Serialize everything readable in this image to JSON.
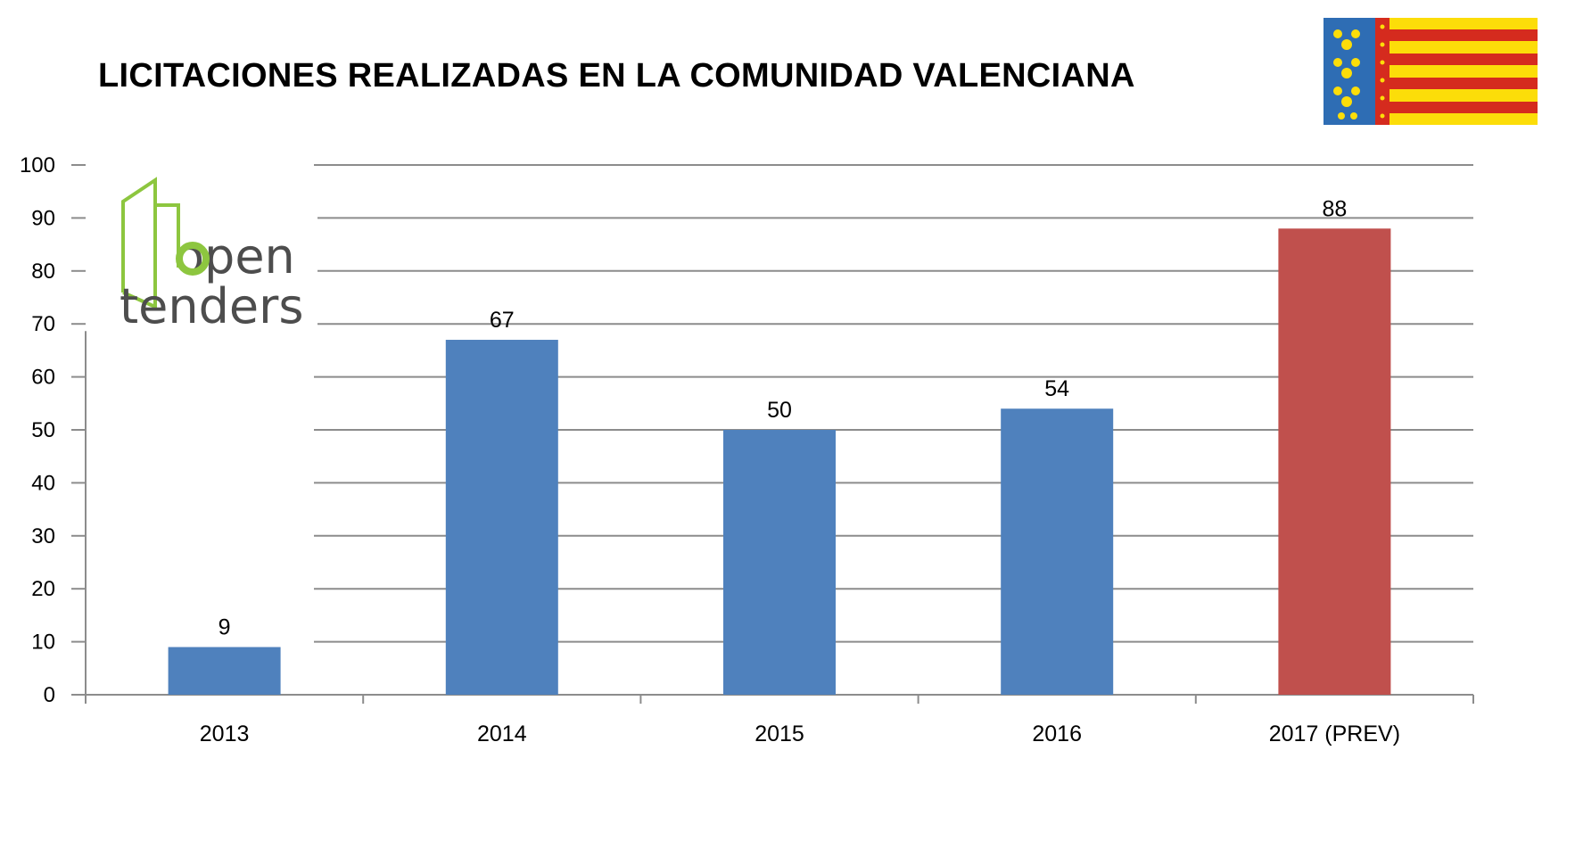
{
  "chart_data": {
    "type": "bar",
    "title": "LICITACIONES REALIZADAS EN LA COMUNIDAD VALENCIANA",
    "xlabel": "",
    "ylabel": "",
    "categories": [
      "2013",
      "2014",
      "2015",
      "2016",
      "2017 (PREV)"
    ],
    "values": [
      9,
      67,
      50,
      54,
      88
    ],
    "data_labels": [
      "9",
      "67",
      "50",
      "54",
      "88"
    ],
    "bar_colors": [
      "#4F81BD",
      "#4F81BD",
      "#4F81BD",
      "#4F81BD",
      "#C0504D"
    ],
    "ylim": [
      0,
      100
    ],
    "yticks": [
      0,
      10,
      20,
      30,
      40,
      50,
      60,
      70,
      80,
      90,
      100
    ],
    "grid": true,
    "legend": "none"
  },
  "logo": {
    "line1": "open",
    "line2": "tenders",
    "accent_color": "#8DC63F",
    "text_color": "#4D4D4D"
  },
  "flag": {
    "name": "valencia-flag",
    "stripe_red": "#D52B1E",
    "stripe_yellow": "#FCDD09",
    "band_blue": "#2E6DB4"
  }
}
